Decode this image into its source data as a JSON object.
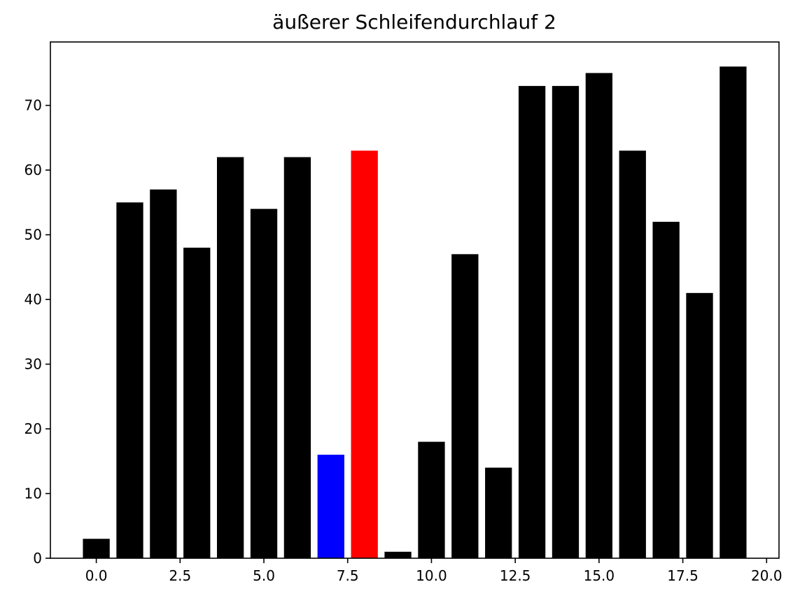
{
  "chart_data": {
    "type": "bar",
    "title": "äußerer Schleifendurchlauf 2",
    "xlabel": "",
    "ylabel": "",
    "x": [
      0,
      1,
      2,
      3,
      4,
      5,
      6,
      7,
      8,
      9,
      10,
      11,
      12,
      13,
      14,
      15,
      16,
      17,
      18,
      19
    ],
    "values": [
      3,
      55,
      57,
      48,
      62,
      54,
      62,
      16,
      63,
      1,
      18,
      47,
      14,
      73,
      73,
      75,
      63,
      52,
      41,
      76
    ],
    "colors": [
      "#000000",
      "#000000",
      "#000000",
      "#000000",
      "#000000",
      "#000000",
      "#000000",
      "#0000ff",
      "#ff0000",
      "#000000",
      "#000000",
      "#000000",
      "#000000",
      "#000000",
      "#000000",
      "#000000",
      "#000000",
      "#000000",
      "#000000",
      "#000000"
    ],
    "xlim": [
      -1.37,
      20.37
    ],
    "ylim": [
      0,
      79.8
    ],
    "xticks": [
      0,
      2.5,
      5,
      7.5,
      10,
      12.5,
      15,
      17.5,
      20
    ],
    "xtick_labels": [
      "0.0",
      "2.5",
      "5.0",
      "7.5",
      "10.0",
      "12.5",
      "15.0",
      "17.5",
      "20.0"
    ],
    "yticks": [
      0,
      10,
      20,
      30,
      40,
      50,
      60,
      70
    ],
    "ytick_labels": [
      "0",
      "10",
      "20",
      "30",
      "40",
      "50",
      "60",
      "70"
    ],
    "grid": false,
    "legend": "none"
  }
}
